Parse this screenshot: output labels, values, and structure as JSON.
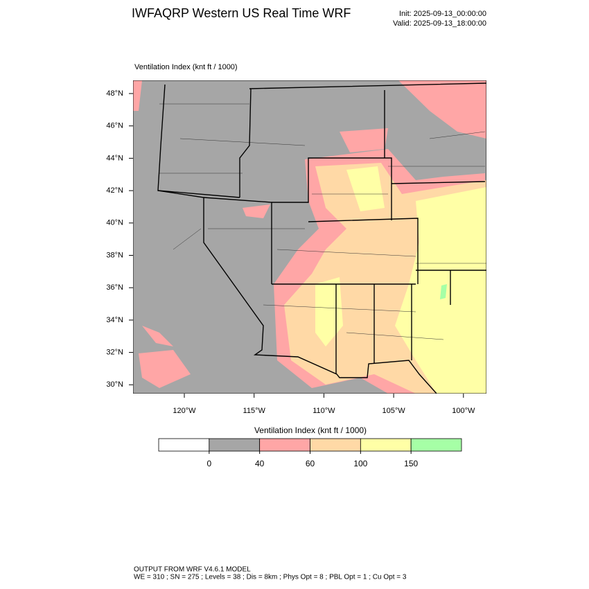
{
  "header": {
    "title": "IWFAQRP Western US Real Time WRF",
    "init": "Init: 2025-09-13_00:00:00",
    "valid": "Valid: 2025-09-13_18:00:00"
  },
  "map": {
    "label": "Ventilation Index   (knt ft / 1000)",
    "lat_labels": [
      "48°N",
      "46°N",
      "44°N",
      "42°N",
      "40°N",
      "38°N",
      "36°N",
      "34°N",
      "32°N",
      "30°N"
    ],
    "lon_labels": [
      "120°W",
      "115°W",
      "110°W",
      "105°W",
      "100°W"
    ]
  },
  "colorbar": {
    "title": "Ventilation Index   (knt ft / 1000)",
    "ticks": [
      0,
      40,
      60,
      100,
      150
    ],
    "colors": [
      "#ffffff",
      "#a6a6a6",
      "#ffa6a6",
      "#ffd9a6",
      "#ffffa6",
      "#a6ffa6"
    ]
  },
  "footer": {
    "line1": "OUTPUT FROM WRF V4.6.1 MODEL",
    "line2": "WE = 310 ; SN = 275 ; Levels = 38 ; Dis = 8km ; Phys Opt = 8 ; PBL Opt = 1 ; Cu Opt = 3"
  }
}
